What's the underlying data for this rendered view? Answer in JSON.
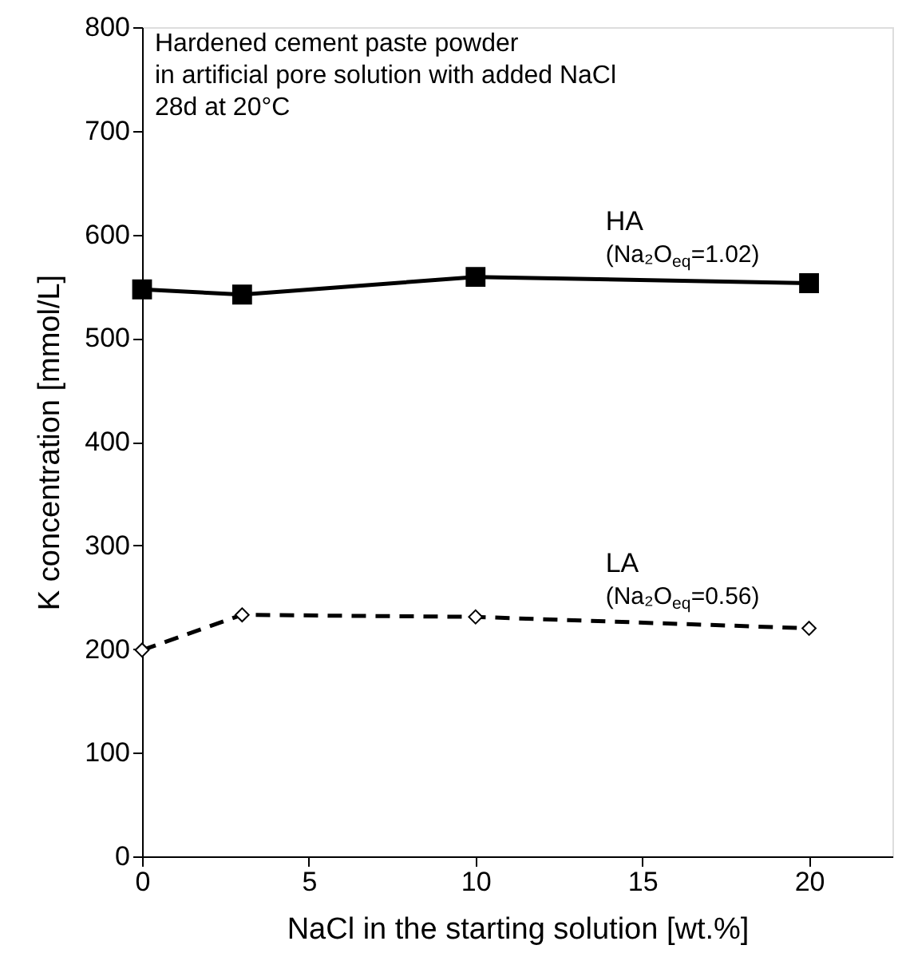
{
  "chart_data": {
    "type": "line",
    "title": "Hardened cement paste powder\nin artificial pore solution with added NaCl\n28d at 20°C",
    "xlabel": "NaCl in the starting solution [wt.%]",
    "ylabel": "K concentration [mmol/L]",
    "x": [
      0,
      3,
      10,
      20
    ],
    "series": [
      {
        "name": "HA",
        "color": "#000000",
        "values": [
          547,
          542,
          559,
          553
        ],
        "marker": "square",
        "line_style": "solid"
      },
      {
        "name": "LA",
        "color": "#000000",
        "values": [
          199,
          233,
          231,
          220
        ],
        "marker": "diamond",
        "line_style": "dashed"
      }
    ],
    "xlim": [
      0,
      22.5
    ],
    "xticks": [
      0,
      5,
      10,
      15,
      20
    ],
    "ylim": [
      0,
      800
    ],
    "yticks": [
      0,
      100,
      200,
      300,
      400,
      500,
      600,
      700,
      800
    ],
    "grid": false,
    "annotations": [
      "(Na₂O$_{eq}$=1.02)",
      "(Na₂O$_{eq}$=0.56)"
    ]
  }
}
